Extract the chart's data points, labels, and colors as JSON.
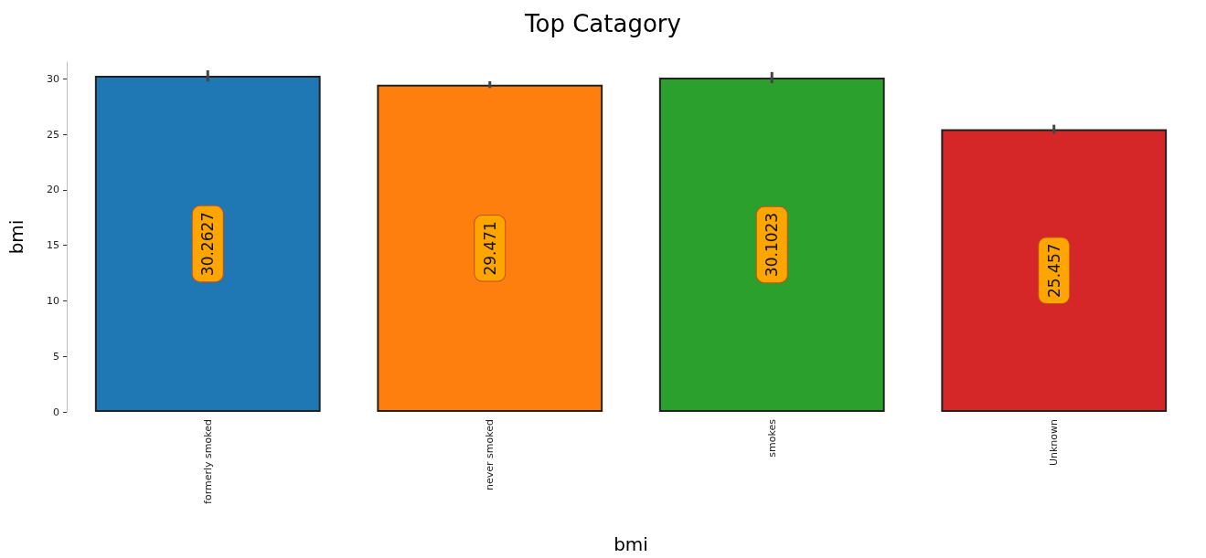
{
  "chart_data": {
    "type": "bar",
    "title": "Top Catagory",
    "xlabel": "bmi",
    "ylabel": "bmi",
    "categories": [
      "formerly smoked",
      "never smoked",
      "smokes",
      "Unknown"
    ],
    "values": [
      30.2627,
      29.471,
      30.1023,
      25.457
    ],
    "colors": [
      "#1f77b4",
      "#ff7f0e",
      "#2ca02c",
      "#d62728"
    ],
    "errors": [
      0.5,
      0.3,
      0.5,
      0.4
    ],
    "ylim": [
      0,
      31.5
    ],
    "yticks": [
      0,
      5,
      10,
      15,
      20,
      25,
      30
    ],
    "grid": false,
    "data_labels": true
  }
}
